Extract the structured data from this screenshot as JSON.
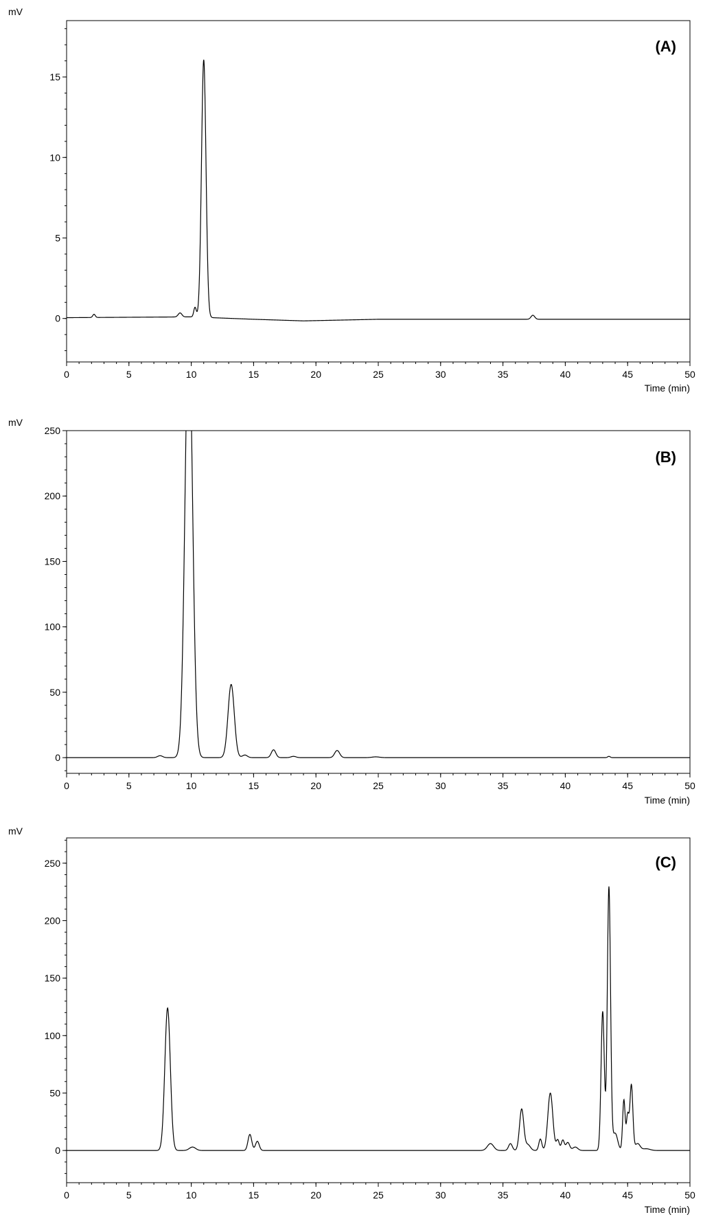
{
  "chart_data": [
    {
      "type": "line",
      "panel_label": "(A)",
      "ylabel": "mV",
      "xlabel": "Time (min)",
      "xlim": [
        0,
        50
      ],
      "ylim": [
        -2.7,
        18.5
      ],
      "xticks": [
        0,
        5,
        10,
        15,
        20,
        25,
        30,
        35,
        40,
        45,
        50
      ],
      "yticks": [
        0,
        5,
        10,
        15
      ],
      "grid": false,
      "baseline": [
        [
          0,
          0.05
        ],
        [
          10,
          0.1
        ],
        [
          15,
          -0.05
        ],
        [
          19,
          -0.15
        ],
        [
          25,
          -0.05
        ],
        [
          35,
          -0.05
        ],
        [
          40,
          -0.05
        ],
        [
          50,
          -0.05
        ]
      ],
      "peaks": [
        {
          "t": 2.2,
          "h": 0.2,
          "w": 0.1
        },
        {
          "t": 9.1,
          "h": 0.25,
          "w": 0.15
        },
        {
          "t": 10.3,
          "h": 0.6,
          "w": 0.1
        },
        {
          "t": 11.0,
          "h": 16.0,
          "w": 0.18
        },
        {
          "t": 37.4,
          "h": 0.25,
          "w": 0.15
        }
      ]
    },
    {
      "type": "line",
      "panel_label": "(B)",
      "ylabel": "mV",
      "xlabel": "Time (min)",
      "xlim": [
        0,
        50
      ],
      "ylim": [
        -12,
        250
      ],
      "xticks": [
        0,
        5,
        10,
        15,
        20,
        25,
        30,
        35,
        40,
        45,
        50
      ],
      "yticks": [
        0,
        50,
        100,
        150,
        200,
        250
      ],
      "grid": false,
      "baseline": [
        [
          0,
          0
        ],
        [
          50,
          0
        ]
      ],
      "peaks": [
        {
          "t": 7.5,
          "h": 1.5,
          "w": 0.2
        },
        {
          "t": 9.8,
          "h": 330,
          "w": 0.3
        },
        {
          "t": 13.2,
          "h": 56,
          "w": 0.25
        },
        {
          "t": 14.3,
          "h": 2,
          "w": 0.2
        },
        {
          "t": 16.6,
          "h": 6,
          "w": 0.18
        },
        {
          "t": 18.2,
          "h": 1,
          "w": 0.2
        },
        {
          "t": 21.7,
          "h": 5.5,
          "w": 0.2
        },
        {
          "t": 24.8,
          "h": 0.6,
          "w": 0.3
        },
        {
          "t": 43.5,
          "h": 1,
          "w": 0.1
        }
      ]
    },
    {
      "type": "line",
      "panel_label": "(C)",
      "ylabel": "mV",
      "xlabel": "Time (min)",
      "xlim": [
        0,
        50
      ],
      "ylim": [
        -28,
        272
      ],
      "xticks": [
        0,
        5,
        10,
        15,
        20,
        25,
        30,
        35,
        40,
        45,
        50
      ],
      "yticks": [
        0,
        50,
        100,
        150,
        200,
        250
      ],
      "grid": false,
      "baseline": [
        [
          0,
          0
        ],
        [
          50,
          0
        ]
      ],
      "peaks": [
        {
          "t": 8.1,
          "h": 124,
          "w": 0.22
        },
        {
          "t": 10.1,
          "h": 3,
          "w": 0.25
        },
        {
          "t": 14.7,
          "h": 14,
          "w": 0.15
        },
        {
          "t": 15.3,
          "h": 8,
          "w": 0.15
        },
        {
          "t": 34.0,
          "h": 6,
          "w": 0.25
        },
        {
          "t": 35.6,
          "h": 6,
          "w": 0.15
        },
        {
          "t": 36.5,
          "h": 36,
          "w": 0.17
        },
        {
          "t": 37.0,
          "h": 5,
          "w": 0.2
        },
        {
          "t": 38.0,
          "h": 10,
          "w": 0.12
        },
        {
          "t": 38.8,
          "h": 50,
          "w": 0.2
        },
        {
          "t": 39.4,
          "h": 9,
          "w": 0.12
        },
        {
          "t": 39.8,
          "h": 9,
          "w": 0.12
        },
        {
          "t": 40.2,
          "h": 7,
          "w": 0.15
        },
        {
          "t": 40.8,
          "h": 3,
          "w": 0.2
        },
        {
          "t": 43.0,
          "h": 121,
          "w": 0.13
        },
        {
          "t": 43.5,
          "h": 229,
          "w": 0.13
        },
        {
          "t": 44.0,
          "h": 15,
          "w": 0.2
        },
        {
          "t": 44.7,
          "h": 44,
          "w": 0.1
        },
        {
          "t": 45.0,
          "h": 30,
          "w": 0.1
        },
        {
          "t": 45.3,
          "h": 57,
          "w": 0.12
        },
        {
          "t": 45.8,
          "h": 6,
          "w": 0.2
        },
        {
          "t": 46.5,
          "h": 1.5,
          "w": 0.3
        }
      ]
    }
  ]
}
